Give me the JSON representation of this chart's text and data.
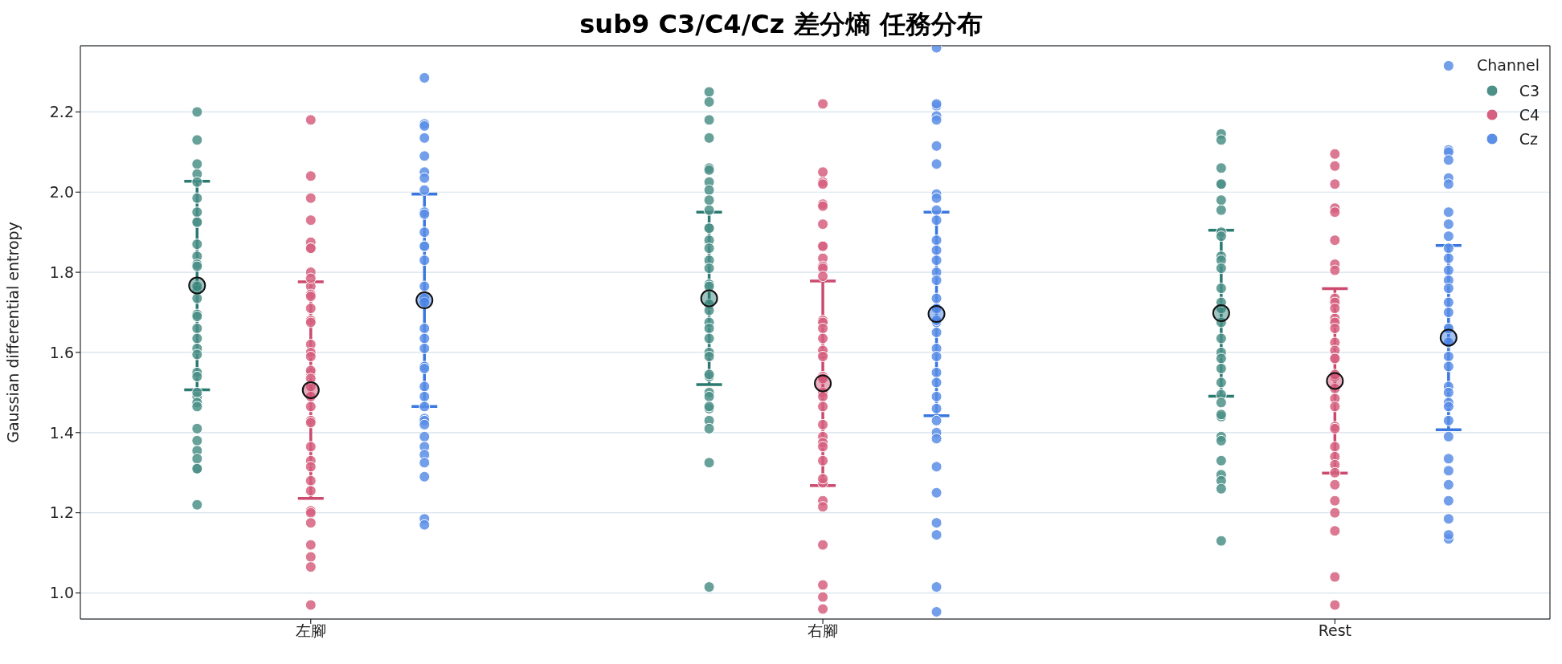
{
  "chart_data": {
    "type": "scatter",
    "title": "sub9 C3/C4/Cz 差分熵 任務分布",
    "ylabel": "Gaussian differential entropy",
    "legend_title": "Channel",
    "legend": "top right",
    "grid": "y",
    "marker": "circle",
    "categories": [
      "左腳",
      "右腳",
      "Rest"
    ],
    "ylim": [
      0.935,
      2.365
    ],
    "yticks": [
      {
        "value": 1,
        "label": "1.0"
      },
      {
        "value": 1.2,
        "label": "1.2"
      },
      {
        "value": 1.4,
        "label": "1.4"
      },
      {
        "value": 1.6,
        "label": "1.6"
      },
      {
        "value": 1.8,
        "label": "1.8"
      },
      {
        "value": 2,
        "label": "2.0"
      },
      {
        "value": 2.2,
        "label": "2.2"
      }
    ],
    "series": [
      {
        "name": "C3",
        "color": "#4c9088",
        "x": [
          "左腳",
          "左腳",
          "左腳",
          "左腳",
          "左腳",
          "左腳",
          "左腳",
          "左腳",
          "左腳",
          "左腳",
          "左腳",
          "左腳",
          "左腳",
          "左腳",
          "左腳",
          "左腳",
          "左腳",
          "左腳",
          "左腳",
          "左腳",
          "左腳",
          "左腳",
          "左腳",
          "左腳",
          "左腳",
          "左腳",
          "左腳",
          "左腳",
          "左腳",
          "左腳",
          "左腳",
          "左腳",
          "左腳",
          "左腳",
          "左腳",
          "右腳",
          "右腳",
          "右腳",
          "右腳",
          "右腳",
          "右腳",
          "右腳",
          "右腳",
          "右腳",
          "右腳",
          "右腳",
          "右腳",
          "右腳",
          "右腳",
          "右腳",
          "右腳",
          "右腳",
          "右腳",
          "右腳",
          "右腳",
          "右腳",
          "右腳",
          "右腳",
          "右腳",
          "右腳",
          "右腳",
          "右腳",
          "右腳",
          "右腳",
          "右腳",
          "右腳",
          "右腳",
          "右腳",
          "右腳",
          "右腳",
          "Rest",
          "Rest",
          "Rest",
          "Rest",
          "Rest",
          "Rest",
          "Rest",
          "Rest",
          "Rest",
          "Rest",
          "Rest",
          "Rest",
          "Rest",
          "Rest",
          "Rest",
          "Rest",
          "Rest",
          "Rest",
          "Rest",
          "Rest",
          "Rest",
          "Rest",
          "Rest",
          "Rest",
          "Rest",
          "Rest",
          "Rest",
          "Rest",
          "Rest",
          "Rest",
          "Rest",
          "Rest"
        ],
        "values": [
          1.755,
          2.2,
          2.13,
          2.07,
          2.045,
          2.025,
          1.985,
          1.95,
          1.925,
          1.925,
          1.87,
          1.84,
          1.82,
          1.815,
          1.765,
          1.735,
          1.695,
          1.69,
          1.66,
          1.635,
          1.61,
          1.595,
          1.55,
          1.54,
          1.49,
          1.5,
          1.475,
          1.465,
          1.41,
          1.38,
          1.355,
          1.335,
          1.31,
          1.31,
          1.22,
          2.25,
          2.225,
          2.18,
          2.135,
          2.06,
          2.055,
          2.025,
          2.005,
          1.98,
          1.955,
          1.91,
          1.91,
          1.88,
          1.86,
          1.83,
          1.81,
          1.77,
          1.765,
          1.72,
          1.705,
          1.675,
          1.66,
          1.635,
          1.6,
          1.59,
          1.54,
          1.545,
          1.5,
          1.49,
          1.46,
          1.465,
          1.43,
          1.41,
          1.325,
          1.015,
          2.145,
          2.13,
          2.06,
          2.02,
          2.02,
          1.98,
          1.955,
          1.9,
          1.89,
          1.84,
          1.83,
          1.81,
          1.76,
          1.71,
          1.725,
          1.675,
          1.635,
          1.6,
          1.585,
          1.56,
          1.525,
          1.495,
          1.44,
          1.475,
          1.445,
          1.39,
          1.38,
          1.33,
          1.295,
          1.28,
          1.26,
          1.13
        ]
      },
      {
        "name": "C4",
        "color": "#d6607f",
        "x": [
          "左腳",
          "左腳",
          "左腳",
          "左腳",
          "左腳",
          "左腳",
          "左腳",
          "左腳",
          "左腳",
          "左腳",
          "左腳",
          "左腳",
          "左腳",
          "左腳",
          "左腳",
          "左腳",
          "左腳",
          "左腳",
          "左腳",
          "左腳",
          "左腳",
          "左腳",
          "左腳",
          "左腳",
          "左腳",
          "左腳",
          "左腳",
          "左腳",
          "左腳",
          "左腳",
          "左腳",
          "左腳",
          "左腳",
          "左腳",
          "左腳",
          "左腳",
          "左腳",
          "左腳",
          "右腳",
          "右腳",
          "右腳",
          "右腳",
          "右腳",
          "右腳",
          "右腳",
          "右腳",
          "右腳",
          "右腳",
          "右腳",
          "右腳",
          "右腳",
          "右腳",
          "右腳",
          "右腳",
          "右腳",
          "右腳",
          "右腳",
          "右腳",
          "右腳",
          "右腳",
          "右腳",
          "右腳",
          "右腳",
          "右腳",
          "右腳",
          "右腳",
          "右腳",
          "右腳",
          "右腳",
          "右腳",
          "右腳",
          "右腳",
          "右腳",
          "右腳",
          "右腳",
          "右腳",
          "Rest",
          "Rest",
          "Rest",
          "Rest",
          "Rest",
          "Rest",
          "Rest",
          "Rest",
          "Rest",
          "Rest",
          "Rest",
          "Rest",
          "Rest",
          "Rest",
          "Rest",
          "Rest",
          "Rest",
          "Rest",
          "Rest",
          "Rest",
          "Rest",
          "Rest",
          "Rest",
          "Rest",
          "Rest",
          "Rest",
          "Rest",
          "Rest",
          "Rest",
          "Rest",
          "Rest",
          "Rest",
          "Rest",
          "Rest",
          "Rest"
        ],
        "values": [
          2.18,
          2.04,
          1.985,
          1.93,
          1.875,
          1.86,
          1.86,
          1.8,
          1.765,
          1.745,
          1.785,
          1.74,
          1.71,
          1.68,
          1.675,
          1.62,
          1.6,
          1.59,
          1.55,
          1.555,
          1.515,
          1.535,
          1.49,
          1.465,
          1.43,
          1.425,
          1.365,
          1.33,
          1.315,
          1.28,
          1.255,
          1.205,
          1.2,
          1.175,
          1.12,
          1.09,
          1.065,
          0.97,
          2.22,
          2.05,
          2.025,
          2.02,
          1.97,
          1.965,
          1.92,
          1.865,
          1.865,
          1.835,
          1.815,
          1.81,
          1.79,
          1.68,
          1.675,
          1.66,
          1.635,
          1.595,
          1.605,
          1.59,
          1.54,
          1.535,
          1.5,
          1.49,
          1.465,
          1.42,
          1.39,
          1.375,
          1.365,
          1.33,
          1.275,
          1.285,
          1.23,
          1.215,
          1.12,
          1.02,
          0.99,
          0.96,
          2.095,
          2.065,
          2.02,
          1.96,
          1.95,
          1.88,
          1.82,
          1.805,
          1.735,
          1.725,
          1.685,
          1.71,
          1.675,
          1.66,
          1.625,
          1.605,
          1.585,
          1.585,
          1.54,
          1.545,
          1.51,
          1.485,
          1.465,
          1.415,
          1.41,
          1.365,
          1.34,
          1.32,
          1.3,
          1.27,
          1.23,
          1.2,
          1.155,
          1.04,
          0.97
        ]
      },
      {
        "name": "Cz",
        "color": "#5b8ee6",
        "x": [
          "左腳",
          "左腳",
          "左腳",
          "左腳",
          "左腳",
          "左腳",
          "左腳",
          "左腳",
          "左腳",
          "左腳",
          "左腳",
          "左腳",
          "左腳",
          "左腳",
          "左腳",
          "左腳",
          "左腳",
          "左腳",
          "左腳",
          "左腳",
          "左腳",
          "左腳",
          "左腳",
          "左腳",
          "左腳",
          "左腳",
          "左腳",
          "左腳",
          "左腳",
          "左腳",
          "左腳",
          "左腳",
          "左腳",
          "左腳",
          "左腳",
          "右腳",
          "右腳",
          "右腳",
          "右腳",
          "右腳",
          "右腳",
          "右腳",
          "右腳",
          "右腳",
          "右腳",
          "右腳",
          "右腳",
          "右腳",
          "右腳",
          "右腳",
          "右腳",
          "右腳",
          "右腳",
          "右腳",
          "右腳",
          "右腳",
          "右腳",
          "右腳",
          "右腳",
          "右腳",
          "右腳",
          "右腳",
          "右腳",
          "右腳",
          "右腳",
          "右腳",
          "右腳",
          "右腳",
          "右腳",
          "右腳",
          "右腳",
          "Rest",
          "Rest",
          "Rest",
          "Rest",
          "Rest",
          "Rest",
          "Rest",
          "Rest",
          "Rest",
          "Rest",
          "Rest",
          "Rest",
          "Rest",
          "Rest",
          "Rest",
          "Rest",
          "Rest",
          "Rest",
          "Rest",
          "Rest",
          "Rest",
          "Rest",
          "Rest",
          "Rest",
          "Rest",
          "Rest",
          "Rest",
          "Rest",
          "Rest",
          "Rest",
          "Rest",
          "Rest",
          "Rest",
          "Rest"
        ],
        "values": [
          2.285,
          2.17,
          2.165,
          2.135,
          2.09,
          2.05,
          2.035,
          2.005,
          1.95,
          1.945,
          1.9,
          1.865,
          1.865,
          1.83,
          1.765,
          1.735,
          1.725,
          1.66,
          1.635,
          1.61,
          1.565,
          1.56,
          1.515,
          1.49,
          1.465,
          1.435,
          1.43,
          1.42,
          1.39,
          1.365,
          1.345,
          1.325,
          1.29,
          1.185,
          1.17,
          2.36,
          2.215,
          2.22,
          2.19,
          2.18,
          2.115,
          2.07,
          1.995,
          1.985,
          1.955,
          1.93,
          1.88,
          1.855,
          1.83,
          1.8,
          1.78,
          1.735,
          1.71,
          1.675,
          1.65,
          1.68,
          1.61,
          1.59,
          1.55,
          1.525,
          1.49,
          1.46,
          1.43,
          1.4,
          1.385,
          1.315,
          1.25,
          1.175,
          1.145,
          1.015,
          0.953,
          2.315,
          2.105,
          2.1,
          2.08,
          2.035,
          2.02,
          1.95,
          1.92,
          1.89,
          1.86,
          1.835,
          1.805,
          1.78,
          1.76,
          1.725,
          1.7,
          1.66,
          1.66,
          1.625,
          1.59,
          1.565,
          1.515,
          1.5,
          1.475,
          1.465,
          1.43,
          1.39,
          1.335,
          1.305,
          1.27,
          1.23,
          1.185,
          1.135,
          1.145
        ]
      },
      {
        "color": "#2b7a70",
        "x": [
          "左腳",
          "右腳",
          "Rest"
        ],
        "values": [
          1.767,
          1.735,
          1.698
        ],
        "errors": [
          0.26,
          0.215,
          0.207
        ]
      },
      {
        "color": "#cc4a6e",
        "x": [
          "左腳",
          "右腳",
          "Rest"
        ],
        "values": [
          1.506,
          1.523,
          1.529
        ],
        "errors": [
          0.27,
          0.255,
          0.23
        ]
      },
      {
        "color": "#3a78e0",
        "x": [
          "左腳",
          "右腳",
          "Rest"
        ],
        "values": [
          1.73,
          1.696,
          1.637
        ],
        "errors": [
          0.265,
          0.254,
          0.23
        ]
      }
    ]
  }
}
